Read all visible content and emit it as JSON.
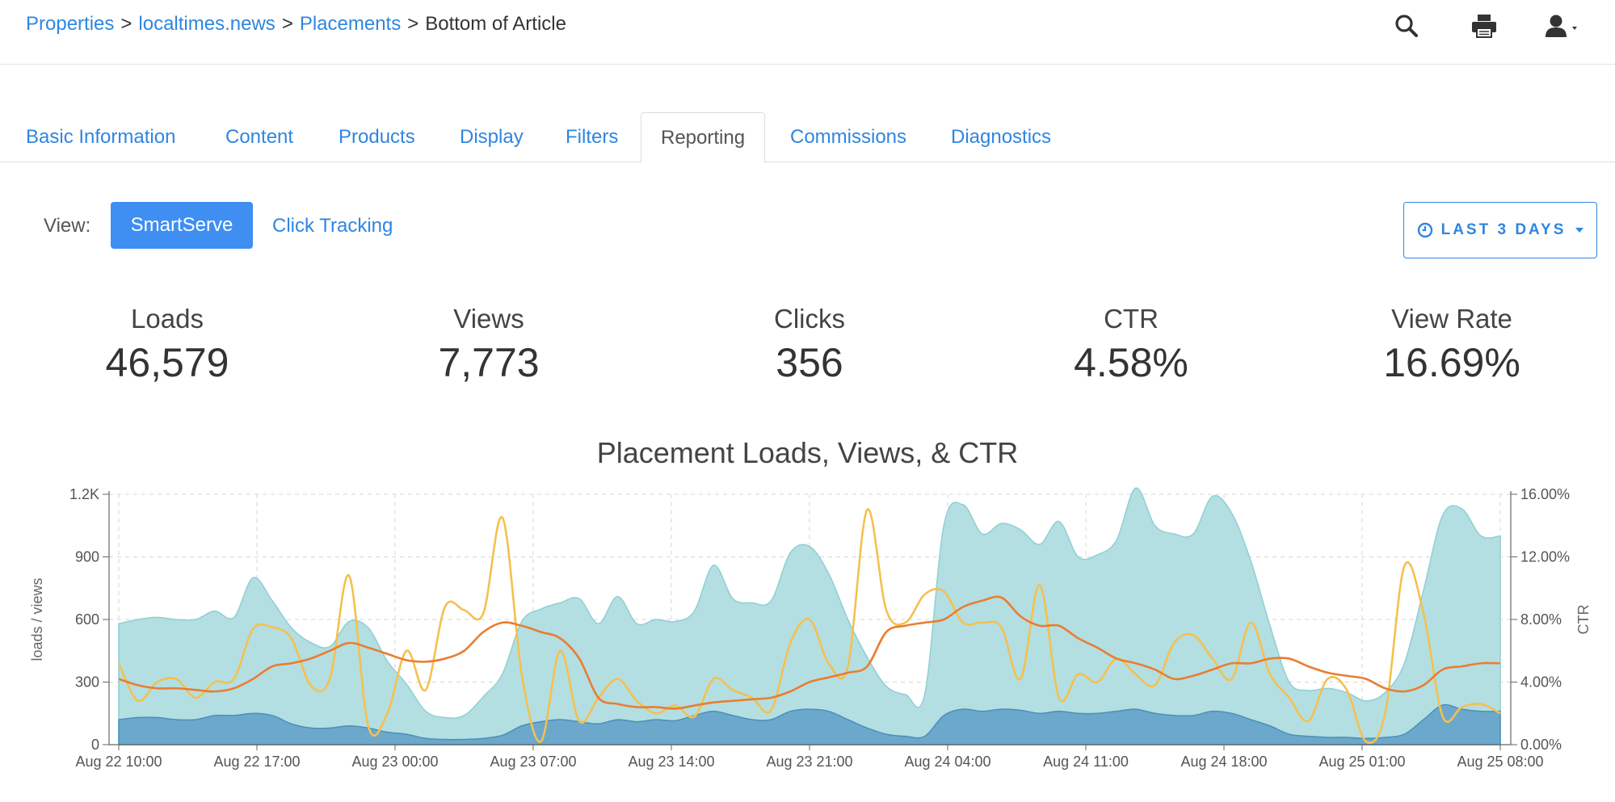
{
  "breadcrumb": {
    "items": [
      "Properties",
      "localtimes.news",
      "Placements"
    ],
    "separator": ">",
    "current": "Bottom of Article"
  },
  "top_icons": [
    "search-icon",
    "print-icon",
    "user-menu-icon"
  ],
  "tabs": [
    "Basic Information",
    "Content",
    "Products",
    "Display",
    "Filters",
    "Reporting",
    "Commissions",
    "Diagnostics"
  ],
  "active_tab": "Reporting",
  "view": {
    "label": "View:",
    "primary": "SmartServe",
    "secondary": "Click Tracking"
  },
  "date_range": {
    "label": "LAST 3 DAYS",
    "icon": "clock-icon"
  },
  "stats": [
    {
      "label": "Loads",
      "value": "46,579"
    },
    {
      "label": "Views",
      "value": "7,773"
    },
    {
      "label": "Clicks",
      "value": "356"
    },
    {
      "label": "CTR",
      "value": "4.58%"
    },
    {
      "label": "View Rate",
      "value": "16.69%"
    }
  ],
  "colors": {
    "link": "#2f86e0",
    "primary_button": "#3f8ef2",
    "loads_fill": "#b3dfe2",
    "views_fill": "#6ba8cb",
    "ctr_line": "#f5c04f",
    "trend_line": "#ea7d32"
  },
  "chart_data": {
    "type": "area",
    "title": "Placement Loads, Views, & CTR",
    "ylabel": "loads / views",
    "y2label": "CTR",
    "ylim": [
      0,
      1200
    ],
    "y2lim": [
      0,
      16
    ],
    "yticks": [
      "0",
      "300",
      "600",
      "900",
      "1.2K"
    ],
    "y2ticks": [
      "0.00%",
      "4.00%",
      "8.00%",
      "12.00%",
      "16.00%"
    ],
    "xticks": [
      "Aug 22 10:00",
      "Aug 22 17:00",
      "Aug 23 00:00",
      "Aug 23 07:00",
      "Aug 23 14:00",
      "Aug 23 21:00",
      "Aug 24 04:00",
      "Aug 24 11:00",
      "Aug 24 18:00",
      "Aug 25 01:00",
      "Aug 25 08:00"
    ],
    "grid": true,
    "x_hours": [
      0,
      1,
      2,
      3,
      4,
      5,
      6,
      7,
      8,
      9,
      10,
      11,
      12,
      13,
      14,
      15,
      16,
      17,
      18,
      19,
      20,
      21,
      22,
      23,
      24,
      25,
      26,
      27,
      28,
      29,
      30,
      31,
      32,
      33,
      34,
      35,
      36,
      37,
      38,
      39,
      40,
      41,
      42,
      43,
      44,
      45,
      46,
      47,
      48,
      49,
      50,
      51,
      52,
      53,
      54,
      55,
      56,
      57,
      58,
      59,
      60,
      61,
      62,
      63,
      64,
      65,
      66,
      67,
      68,
      69,
      70,
      71,
      72
    ],
    "series": [
      {
        "name": "Loads",
        "values": [
          580,
          600,
          610,
          600,
          600,
          640,
          610,
          800,
          690,
          560,
          490,
          470,
          590,
          560,
          400,
          290,
          160,
          130,
          140,
          230,
          340,
          590,
          650,
          680,
          700,
          580,
          710,
          580,
          600,
          590,
          640,
          860,
          700,
          680,
          690,
          920,
          950,
          820,
          600,
          420,
          280,
          240,
          240,
          1050,
          1150,
          1010,
          1060,
          1030,
          960,
          1070,
          900,
          910,
          980,
          1230,
          1050,
          1010,
          1010,
          1190,
          1110,
          880,
          570,
          300,
          260,
          270,
          250,
          210,
          250,
          390,
          740,
          1100,
          1130,
          1000,
          1000
        ],
        "style": "area"
      },
      {
        "name": "Views",
        "values": [
          120,
          130,
          130,
          120,
          120,
          140,
          140,
          150,
          140,
          100,
          80,
          80,
          90,
          80,
          60,
          50,
          30,
          25,
          25,
          30,
          45,
          90,
          110,
          120,
          110,
          100,
          120,
          110,
          120,
          115,
          140,
          160,
          140,
          120,
          120,
          160,
          170,
          160,
          120,
          80,
          50,
          40,
          40,
          140,
          170,
          160,
          170,
          165,
          150,
          160,
          150,
          150,
          160,
          170,
          150,
          140,
          140,
          160,
          150,
          120,
          90,
          50,
          40,
          35,
          35,
          30,
          35,
          50,
          120,
          190,
          170,
          160,
          160
        ],
        "style": "area"
      },
      {
        "name": "CTR",
        "values": [
          5.2,
          2.8,
          4.0,
          4.2,
          3.0,
          4.0,
          4.2,
          7.4,
          7.5,
          6.8,
          3.8,
          4.2,
          10.8,
          1.2,
          2.0,
          6.0,
          3.5,
          8.8,
          8.6,
          8.4,
          14.5,
          4.5,
          0.2,
          6.0,
          1.5,
          3.0,
          4.2,
          2.8,
          2.0,
          2.5,
          1.8,
          4.2,
          3.5,
          3.0,
          2.2,
          6.5,
          8.0,
          5.2,
          5.0,
          15.0,
          8.6,
          7.8,
          9.6,
          9.8,
          7.8,
          7.8,
          7.5,
          4.2,
          10.2,
          3.0,
          4.5,
          4.0,
          5.5,
          4.5,
          3.8,
          6.5,
          7.0,
          5.5,
          4.2,
          7.8,
          4.5,
          3.0,
          1.5,
          4.2,
          3.5,
          0.2,
          2.0,
          11.4,
          8.4,
          1.8,
          2.4,
          2.6,
          2.0
        ],
        "style": "line"
      },
      {
        "name": "CTR trend",
        "values": [
          4.2,
          3.8,
          3.6,
          3.6,
          3.5,
          3.4,
          3.6,
          4.2,
          5.0,
          5.2,
          5.5,
          6.0,
          6.5,
          6.2,
          5.8,
          5.4,
          5.3,
          5.5,
          6.0,
          7.2,
          7.8,
          7.6,
          7.2,
          6.8,
          5.5,
          3.0,
          2.6,
          2.4,
          2.4,
          2.3,
          2.5,
          2.7,
          2.8,
          2.9,
          3.0,
          3.4,
          4.0,
          4.3,
          4.6,
          5.0,
          7.2,
          7.6,
          7.8,
          8.0,
          8.8,
          9.2,
          9.4,
          8.2,
          7.6,
          7.6,
          6.8,
          6.2,
          5.5,
          5.2,
          4.8,
          4.2,
          4.4,
          4.8,
          5.2,
          5.2,
          5.5,
          5.5,
          5.0,
          4.6,
          4.4,
          4.2,
          3.6,
          3.4,
          3.8,
          4.8,
          5.0,
          5.2,
          5.2
        ],
        "style": "line"
      }
    ]
  }
}
